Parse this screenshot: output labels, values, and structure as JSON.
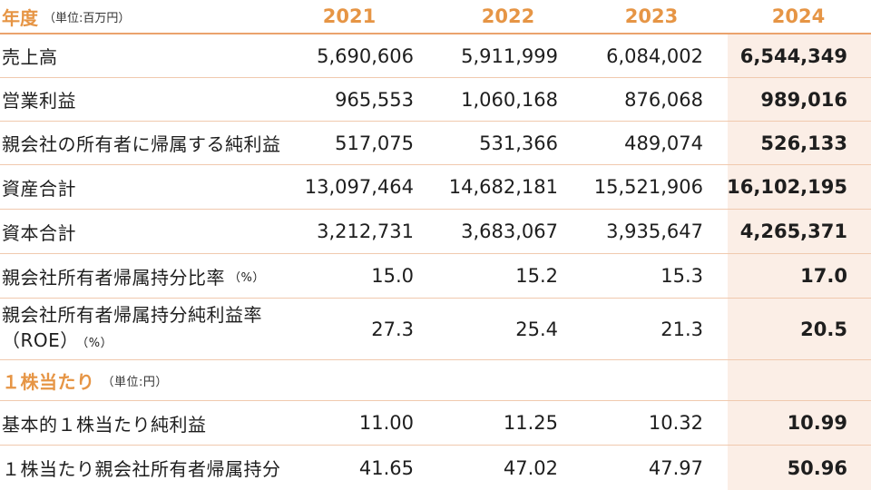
{
  "header": {
    "title": "年度",
    "unit_note": "（単位:百万円）",
    "years": [
      "2021",
      "2022",
      "2023",
      "2024"
    ]
  },
  "rows": [
    {
      "label": "売上高",
      "values": [
        "5,690,606",
        "5,911,999",
        "6,084,002",
        "6,544,349"
      ]
    },
    {
      "label": "営業利益",
      "values": [
        "965,553",
        "1,060,168",
        "876,068",
        "989,016"
      ]
    },
    {
      "label": "親会社の所有者に帰属する純利益",
      "values": [
        "517,075",
        "531,366",
        "489,074",
        "526,133"
      ]
    },
    {
      "label": "資産合計",
      "values": [
        "13,097,464",
        "14,682,181",
        "15,521,906",
        "16,102,195"
      ]
    },
    {
      "label": "資本合計",
      "values": [
        "3,212,731",
        "3,683,067",
        "3,935,647",
        "4,265,371"
      ]
    },
    {
      "label": "親会社所有者帰属持分比率",
      "note": "（%）",
      "values": [
        "15.0",
        "15.2",
        "15.3",
        "17.0"
      ]
    },
    {
      "label_line1": "親会社所有者帰属持分純利益率",
      "label_line2": "（ROE）",
      "note": "（%）",
      "values": [
        "27.3",
        "25.4",
        "21.3",
        "20.5"
      ]
    }
  ],
  "section": {
    "title": "１株当たり",
    "unit_note": "（単位:円）"
  },
  "per_share_rows": [
    {
      "label": "基本的１株当たり純利益",
      "values": [
        "11.00",
        "11.25",
        "10.32",
        "10.99"
      ]
    },
    {
      "label": "１株当たり親会社所有者帰属持分",
      "values": [
        "41.65",
        "47.02",
        "47.97",
        "50.96"
      ]
    }
  ],
  "colors": {
    "accent": "#e69545",
    "highlight": "#fbeee6",
    "rule": "#f0c9ae"
  }
}
